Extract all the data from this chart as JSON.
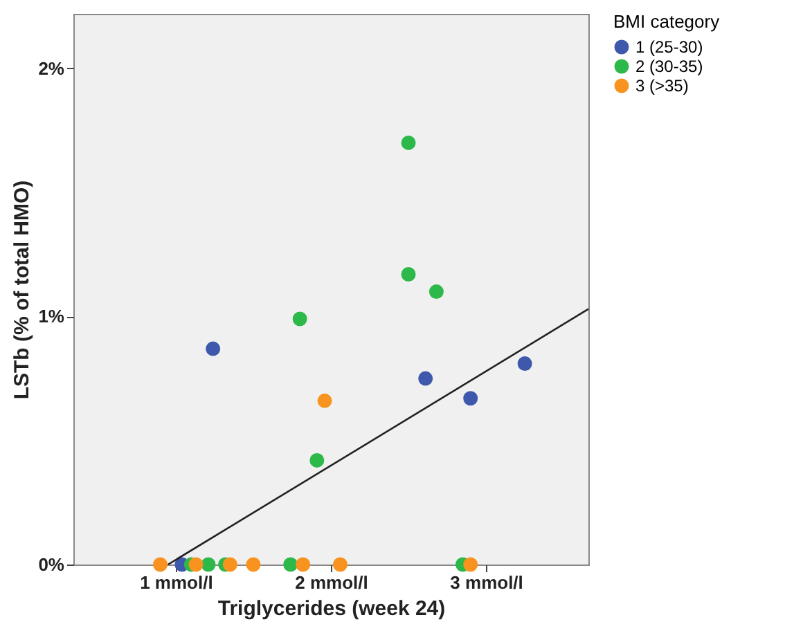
{
  "chart_data": {
    "type": "scatter",
    "xlabel": "Triglycerides (week 24)",
    "ylabel": "LSTb (% of total HMO)",
    "legend_title": "BMI category",
    "xlim": [
      0.34,
      3.66
    ],
    "ylim": [
      0,
      2.22
    ],
    "xticks": [
      {
        "value": 1,
        "label": "1 mmol/l"
      },
      {
        "value": 2,
        "label": "2 mmol/l"
      },
      {
        "value": 3,
        "label": "3 mmol/l"
      }
    ],
    "yticks": [
      {
        "value": 0,
        "label": "0%"
      },
      {
        "value": 1,
        "label": "1%"
      },
      {
        "value": 2,
        "label": "2%"
      }
    ],
    "grid": false,
    "legend": "top right",
    "marker": "circle",
    "series": [
      {
        "name": "1 (25-30)",
        "color": "#3e58ac",
        "x": [
          1.24,
          2.61,
          2.9,
          3.25,
          1.04
        ],
        "values": [
          0.87,
          0.75,
          0.67,
          0.81,
          0
        ]
      },
      {
        "name": "2 (30-35)",
        "color": "#2db84a",
        "x": [
          2.5,
          2.5,
          2.68,
          1.8,
          1.91,
          1.1,
          1.21,
          1.32,
          1.74,
          2.85
        ],
        "values": [
          1.7,
          1.17,
          1.1,
          0.99,
          0.42,
          0,
          0,
          0,
          0,
          0
        ]
      },
      {
        "name": "3 (>35)",
        "color": "#f7931e",
        "x": [
          1.96,
          0.9,
          1.13,
          1.35,
          1.5,
          1.82,
          2.06,
          2.9
        ],
        "values": [
          0.66,
          0,
          0,
          0,
          0,
          0,
          0,
          0
        ]
      },
      {
        "type": "line",
        "color": "#222222",
        "marker": "none",
        "line_style": "solid",
        "x": [
          0.95,
          3.66
        ],
        "values": [
          0,
          1.03
        ]
      }
    ]
  }
}
